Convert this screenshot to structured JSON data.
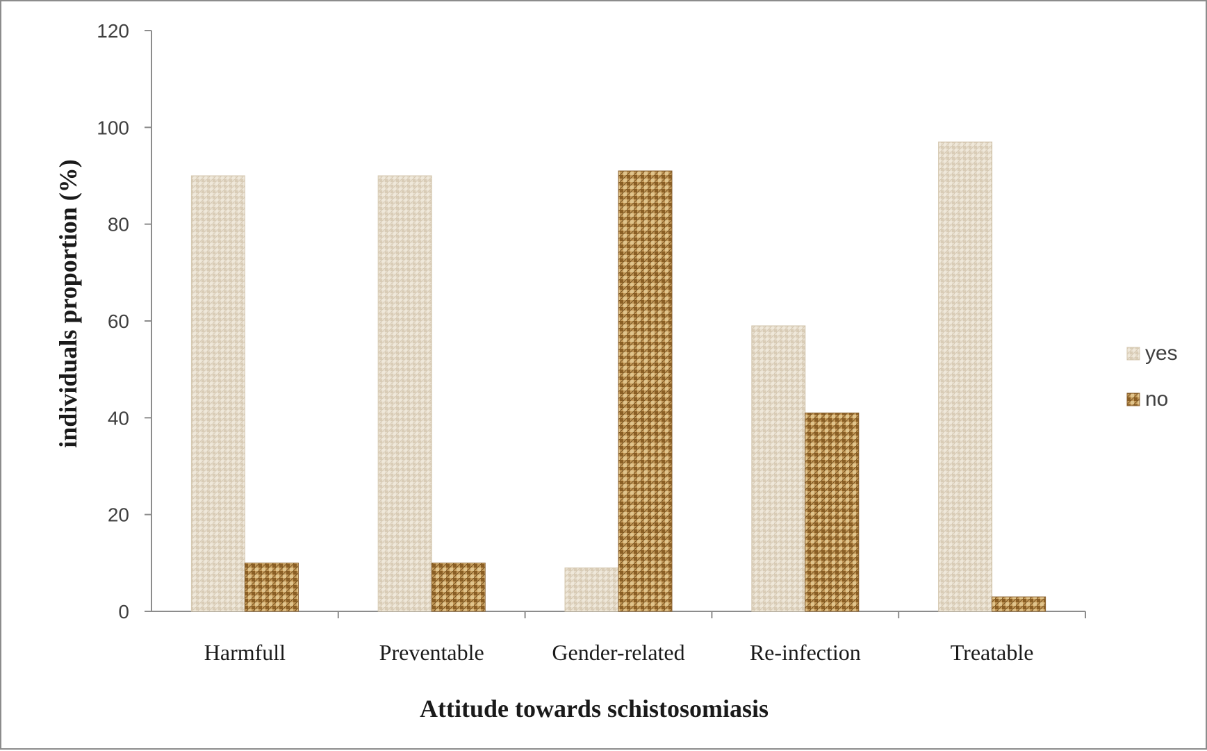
{
  "chart_data": {
    "type": "bar",
    "title": "",
    "xlabel": "Attitude towards schistosomiasis",
    "ylabel": "individuals proportion (%)",
    "categories": [
      "Harmfull",
      "Preventable",
      "Gender-related",
      "Re-infection",
      "Treatable"
    ],
    "series": [
      {
        "name": "yes",
        "values": [
          90,
          90,
          9,
          59,
          97
        ],
        "color": "#e6dccb"
      },
      {
        "name": "no",
        "values": [
          10,
          10,
          91,
          41,
          3
        ],
        "color": "#b88a4a"
      }
    ],
    "ylim": [
      0,
      120
    ],
    "yticks": [
      0,
      20,
      40,
      60,
      80,
      100,
      120
    ],
    "grid": false,
    "legend_position": "right"
  }
}
